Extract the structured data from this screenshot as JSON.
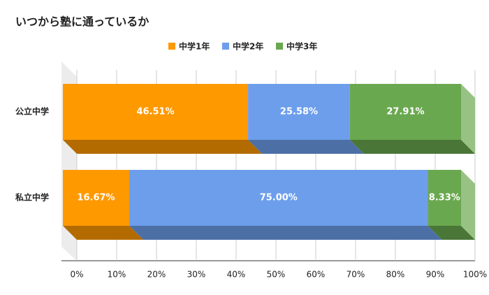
{
  "chart_data": {
    "type": "bar",
    "orientation": "horizontal",
    "stacked": true,
    "title": "いつから塾に通っているか",
    "categories": [
      "公立中学",
      "私立中学"
    ],
    "series": [
      {
        "name": "中学1年",
        "color": "#ff9900",
        "values": [
          46.51,
          16.67
        ],
        "value_labels": [
          "46.51%",
          "16.67%"
        ]
      },
      {
        "name": "中学2年",
        "color": "#6d9eeb",
        "values": [
          25.58,
          75.0
        ],
        "value_labels": [
          "25.58%",
          "75.00%"
        ]
      },
      {
        "name": "中学3年",
        "color": "#6aa84f",
        "values": [
          27.91,
          8.33
        ],
        "value_labels": [
          "27.91%",
          "8.33%"
        ]
      }
    ],
    "xlim": [
      0,
      100
    ],
    "xticks": [
      {
        "value": 0,
        "label": "0%"
      },
      {
        "value": 10,
        "label": "10%"
      },
      {
        "value": 20,
        "label": "20%"
      },
      {
        "value": 30,
        "label": "30%"
      },
      {
        "value": 40,
        "label": "40%"
      },
      {
        "value": 50,
        "label": "50%"
      },
      {
        "value": 60,
        "label": "60%"
      },
      {
        "value": 70,
        "label": "70%"
      },
      {
        "value": 80,
        "label": "80%"
      },
      {
        "value": 90,
        "label": "90%"
      },
      {
        "value": 100,
        "label": "100%"
      }
    ],
    "grid": true,
    "legend": "top"
  }
}
